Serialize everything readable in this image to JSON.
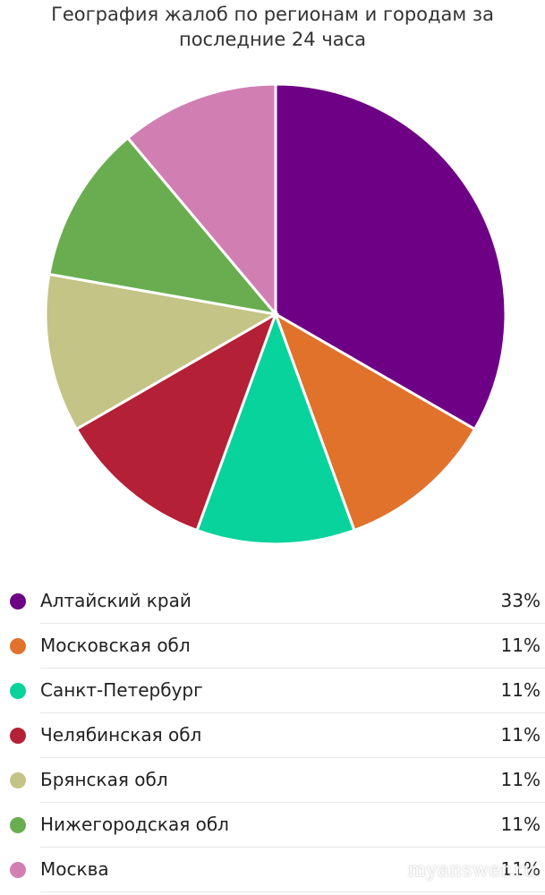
{
  "chart_data": {
    "type": "pie",
    "title": "География жалоб по регионам и городам за последние 24 часа",
    "categories": [
      "Алтайский край",
      "Московская обл",
      "Санкт-Петербург",
      "Челябинская обл",
      "Брянская обл",
      "Нижегородская обл",
      "Москва"
    ],
    "values": [
      33,
      11,
      11,
      11,
      11,
      11,
      11
    ],
    "value_labels": [
      "33%",
      "11%",
      "11%",
      "11%",
      "11%",
      "11%",
      "11%"
    ],
    "colors": [
      "#6e0085",
      "#e0722c",
      "#08d39c",
      "#b42036",
      "#c4c486",
      "#69ad50",
      "#d17fb3"
    ],
    "watermark": "myanswer.ru"
  }
}
